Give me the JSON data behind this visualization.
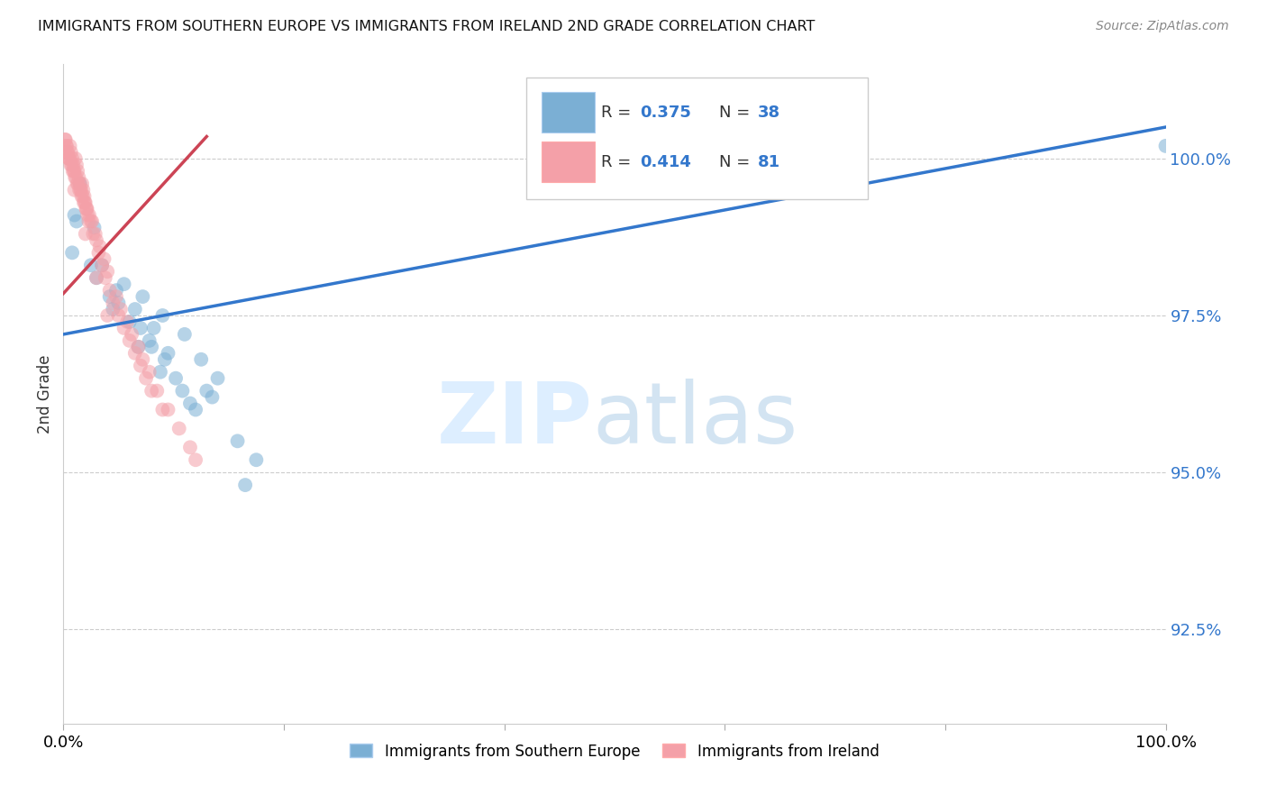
{
  "title": "IMMIGRANTS FROM SOUTHERN EUROPE VS IMMIGRANTS FROM IRELAND 2ND GRADE CORRELATION CHART",
  "source": "Source: ZipAtlas.com",
  "ylabel": "2nd Grade",
  "xlim": [
    0,
    100
  ],
  "ylim": [
    91.0,
    101.5
  ],
  "yticks": [
    92.5,
    95.0,
    97.5,
    100.0
  ],
  "ytick_labels": [
    "92.5%",
    "95.0%",
    "97.5%",
    "100.0%"
  ],
  "xticks": [
    0,
    20,
    40,
    60,
    80,
    100
  ],
  "xtick_labels": [
    "0.0%",
    "",
    "",
    "",
    "",
    "100.0%"
  ],
  "legend_label_blue": "Immigrants from Southern Europe",
  "legend_label_pink": "Immigrants from Ireland",
  "blue_color": "#7BAFD4",
  "pink_color": "#F4A0A8",
  "line_blue_color": "#3377CC",
  "line_pink_color": "#CC4455",
  "r_blue": "0.375",
  "n_blue": "38",
  "r_pink": "0.414",
  "n_pink": "81",
  "text_blue": "#3377CC",
  "text_black": "#333333",
  "blue_scatter_x": [
    1.5,
    2.8,
    1.0,
    0.8,
    5.5,
    7.2,
    3.5,
    9.0,
    11.0,
    4.8,
    6.5,
    8.2,
    12.5,
    14.0,
    5.0,
    7.8,
    10.8,
    6.0,
    9.5,
    13.5,
    3.0,
    4.2,
    8.8,
    11.5,
    7.0,
    15.8,
    17.5,
    2.5,
    6.8,
    10.2,
    12.0,
    9.2,
    16.5,
    1.2,
    4.5,
    8.0,
    13.0,
    100.0
  ],
  "blue_scatter_y": [
    99.6,
    98.9,
    99.1,
    98.5,
    98.0,
    97.8,
    98.3,
    97.5,
    97.2,
    97.9,
    97.6,
    97.3,
    96.8,
    96.5,
    97.7,
    97.1,
    96.3,
    97.4,
    96.9,
    96.2,
    98.1,
    97.8,
    96.6,
    96.1,
    97.3,
    95.5,
    95.2,
    98.3,
    97.0,
    96.5,
    96.0,
    96.8,
    94.8,
    99.0,
    97.6,
    97.0,
    96.3,
    100.2
  ],
  "pink_scatter_x": [
    0.2,
    0.3,
    0.4,
    0.5,
    0.6,
    0.7,
    0.8,
    0.9,
    1.0,
    1.1,
    1.2,
    1.3,
    1.4,
    1.5,
    1.6,
    1.7,
    1.8,
    1.9,
    2.0,
    2.1,
    2.2,
    2.3,
    0.25,
    0.45,
    0.65,
    0.85,
    1.05,
    1.25,
    1.45,
    1.65,
    1.85,
    2.05,
    2.5,
    2.7,
    3.0,
    3.2,
    3.5,
    3.8,
    4.2,
    4.5,
    5.0,
    5.5,
    6.0,
    6.5,
    7.0,
    7.5,
    8.0,
    9.0,
    0.15,
    0.35,
    0.55,
    0.75,
    0.95,
    1.15,
    1.35,
    1.55,
    1.75,
    1.95,
    2.15,
    2.35,
    2.6,
    2.9,
    3.3,
    3.7,
    4.0,
    4.8,
    5.2,
    5.8,
    6.2,
    6.8,
    7.2,
    7.8,
    8.5,
    9.5,
    10.5,
    11.5,
    12.0,
    1.0,
    2.0,
    3.0,
    4.0
  ],
  "pink_scatter_y": [
    100.3,
    100.2,
    100.1,
    100.0,
    100.2,
    100.1,
    100.0,
    99.9,
    99.8,
    100.0,
    99.9,
    99.8,
    99.7,
    99.6,
    99.5,
    99.6,
    99.5,
    99.4,
    99.3,
    99.2,
    99.1,
    99.0,
    100.2,
    100.0,
    99.9,
    99.8,
    99.7,
    99.6,
    99.5,
    99.4,
    99.3,
    99.2,
    99.0,
    98.8,
    98.7,
    98.5,
    98.3,
    98.1,
    97.9,
    97.7,
    97.5,
    97.3,
    97.1,
    96.9,
    96.7,
    96.5,
    96.3,
    96.0,
    100.3,
    100.1,
    100.0,
    99.9,
    99.8,
    99.7,
    99.6,
    99.5,
    99.4,
    99.3,
    99.2,
    99.1,
    99.0,
    98.8,
    98.6,
    98.4,
    98.2,
    97.8,
    97.6,
    97.4,
    97.2,
    97.0,
    96.8,
    96.6,
    96.3,
    96.0,
    95.7,
    95.4,
    95.2,
    99.5,
    98.8,
    98.1,
    97.5
  ],
  "blue_line_x0": 0,
  "blue_line_x1": 100,
  "blue_line_y0": 97.2,
  "blue_line_y1": 100.5,
  "pink_line_x0": 0,
  "pink_line_x1": 13,
  "pink_line_y0": 97.85,
  "pink_line_y1": 100.35
}
